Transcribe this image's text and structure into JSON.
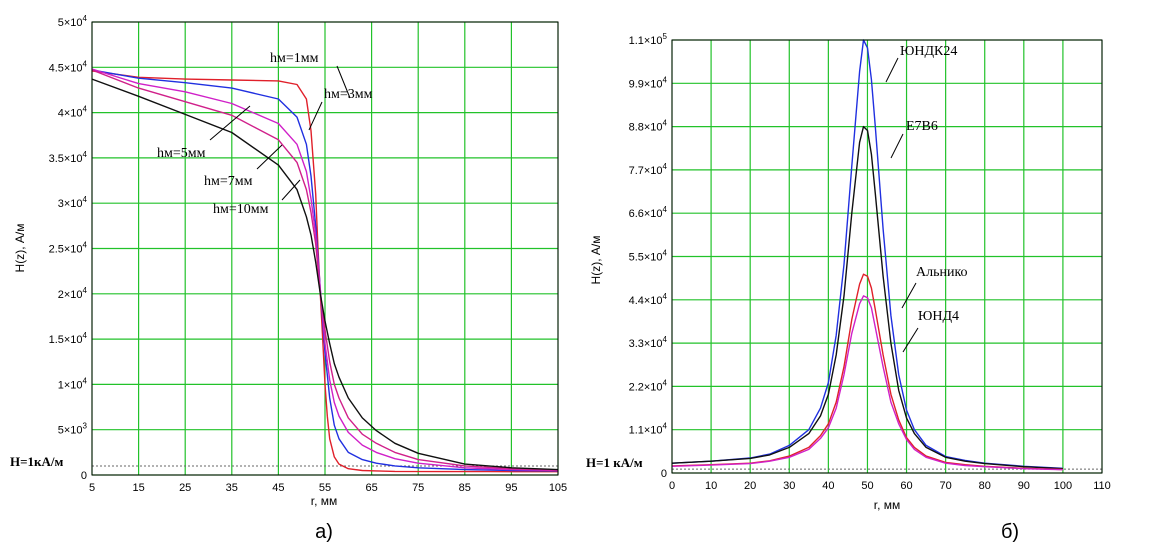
{
  "chart_data": [
    {
      "id": "a",
      "type": "line",
      "caption": "а)",
      "xlabel": "r, мм",
      "ylabel": "H(z), А/м",
      "xlim": [
        5,
        105
      ],
      "ylim": [
        0,
        50000
      ],
      "xticks": [
        "5",
        "15",
        "25",
        "35",
        "45",
        "55",
        "65",
        "75",
        "85",
        "95",
        "105"
      ],
      "yticks": [
        {
          "v": 0,
          "m": "0",
          "e": ""
        },
        {
          "v": 5000,
          "m": "5×10",
          "e": "3"
        },
        {
          "v": 10000,
          "m": "1×10",
          "e": "4"
        },
        {
          "v": 15000,
          "m": "1.5×10",
          "e": "4"
        },
        {
          "v": 20000,
          "m": "2×10",
          "e": "4"
        },
        {
          "v": 25000,
          "m": "2.5×10",
          "e": "4"
        },
        {
          "v": 30000,
          "m": "3×10",
          "e": "4"
        },
        {
          "v": 35000,
          "m": "3.5×10",
          "e": "4"
        },
        {
          "v": 40000,
          "m": "4×10",
          "e": "4"
        },
        {
          "v": 45000,
          "m": "4.5×10",
          "e": "4"
        },
        {
          "v": 50000,
          "m": "5×10",
          "e": "4"
        }
      ],
      "grid": true,
      "reference": {
        "label": "H=1кА/м",
        "value": 1000
      },
      "series": [
        {
          "name": "hм=1мм",
          "color": "#e0202a",
          "x": [
            5,
            15,
            25,
            35,
            45,
            49,
            51,
            52,
            53,
            53.5,
            54,
            54.5,
            55,
            55.5,
            56,
            57,
            58,
            60,
            63,
            66,
            70,
            80,
            90,
            105
          ],
          "y": [
            44600,
            43900,
            43700,
            43600,
            43500,
            43100,
            41500,
            38000,
            31000,
            25000,
            20000,
            15000,
            10000,
            6500,
            4000,
            2000,
            1200,
            700,
            500,
            450,
            400,
            380,
            370,
            360
          ]
        },
        {
          "name": "hм=3мм",
          "color": "#2030e0",
          "x": [
            5,
            15,
            25,
            35,
            45,
            49,
            51,
            52,
            53,
            54,
            55,
            56,
            57,
            58,
            60,
            63,
            66,
            70,
            75,
            85,
            95,
            105
          ],
          "y": [
            44700,
            43800,
            43300,
            42700,
            41500,
            39500,
            36500,
            33000,
            27500,
            20500,
            13500,
            8500,
            5500,
            4000,
            2500,
            1700,
            1300,
            1000,
            800,
            600,
            500,
            450
          ]
        },
        {
          "name": "hм=5мм",
          "color": "#d020c8",
          "x": [
            5,
            15,
            25,
            35,
            45,
            49,
            51,
            52,
            53,
            54,
            55,
            56,
            57,
            58,
            60,
            63,
            66,
            70,
            75,
            85,
            95,
            105
          ],
          "y": [
            44800,
            43200,
            42300,
            41000,
            38800,
            36500,
            33500,
            30500,
            26500,
            20500,
            14500,
            10500,
            8000,
            6500,
            4700,
            3300,
            2500,
            1800,
            1300,
            800,
            600,
            500
          ]
        },
        {
          "name": "hм=7мм",
          "color": "#d0208a",
          "x": [
            5,
            15,
            25,
            35,
            45,
            49,
            51,
            52,
            53,
            54,
            55,
            56,
            57,
            58,
            60,
            63,
            66,
            70,
            75,
            85,
            95,
            105
          ],
          "y": [
            44700,
            42700,
            41200,
            39700,
            37000,
            34500,
            31500,
            29000,
            25500,
            20000,
            16000,
            12500,
            10000,
            8500,
            6300,
            4500,
            3500,
            2500,
            1700,
            1000,
            700,
            550
          ]
        },
        {
          "name": "hм=10мм",
          "color": "#101010",
          "x": [
            5,
            15,
            25,
            35,
            45,
            49,
            51,
            52,
            53,
            54,
            55,
            56,
            57,
            58,
            60,
            63,
            66,
            70,
            75,
            85,
            95,
            105
          ],
          "y": [
            43700,
            41800,
            39800,
            37800,
            34200,
            31500,
            28500,
            26500,
            23500,
            20000,
            17000,
            14500,
            12300,
            10800,
            8500,
            6300,
            4900,
            3500,
            2400,
            1200,
            800,
            600
          ]
        }
      ],
      "annotations": [
        "hм=1мм",
        "hм=3мм",
        "hм=5мм",
        "hм=7мм",
        "hм=10мм"
      ]
    },
    {
      "id": "b",
      "type": "line",
      "caption": "б)",
      "xlabel": "r, мм",
      "ylabel": "H(z), А/м",
      "xlim": [
        0,
        110
      ],
      "ylim": [
        0,
        110000
      ],
      "xticks": [
        "0",
        "10",
        "20",
        "30",
        "40",
        "50",
        "60",
        "70",
        "80",
        "90",
        "100",
        "110"
      ],
      "yticks": [
        {
          "v": 0,
          "m": "0",
          "e": ""
        },
        {
          "v": 11000,
          "m": "1.1×10",
          "e": "4"
        },
        {
          "v": 22000,
          "m": "2.2×10",
          "e": "4"
        },
        {
          "v": 33000,
          "m": "3.3×10",
          "e": "4"
        },
        {
          "v": 44000,
          "m": "4.4×10",
          "e": "4"
        },
        {
          "v": 55000,
          "m": "5.5×10",
          "e": "4"
        },
        {
          "v": 66000,
          "m": "6.6×10",
          "e": "4"
        },
        {
          "v": 77000,
          "m": "7.7×10",
          "e": "4"
        },
        {
          "v": 88000,
          "m": "8.8×10",
          "e": "4"
        },
        {
          "v": 99000,
          "m": "9.9×10",
          "e": "4"
        },
        {
          "v": 110000,
          "m": "1.1×10",
          "e": "5"
        }
      ],
      "grid": true,
      "reference": {
        "label": "H=1 кА/м",
        "value": 1000
      },
      "series": [
        {
          "name": "ЮНДК24",
          "color": "#2030e0",
          "x": [
            0,
            10,
            20,
            25,
            30,
            35,
            38,
            40,
            42,
            44,
            46,
            48,
            49,
            50,
            51,
            52,
            54,
            56,
            58,
            60,
            62,
            65,
            70,
            75,
            80,
            90,
            100
          ],
          "y": [
            2500,
            3000,
            3800,
            4800,
            7000,
            11000,
            16500,
            23000,
            35000,
            53000,
            78000,
            102000,
            110000,
            108000,
            100000,
            88000,
            62000,
            40000,
            25000,
            16000,
            11000,
            7000,
            4200,
            3200,
            2500,
            1700,
            1200
          ]
        },
        {
          "name": "Е7В6",
          "color": "#101010",
          "x": [
            0,
            10,
            20,
            25,
            30,
            35,
            38,
            40,
            42,
            44,
            46,
            48,
            49,
            50,
            51,
            52,
            54,
            56,
            58,
            60,
            62,
            65,
            70,
            75,
            80,
            90,
            100
          ],
          "y": [
            2500,
            3000,
            3700,
            4600,
            6500,
            10000,
            14500,
            20000,
            30000,
            45000,
            66000,
            84000,
            88000,
            87000,
            81000,
            71000,
            50000,
            33000,
            21000,
            14000,
            10000,
            6500,
            4000,
            3000,
            2400,
            1600,
            1100
          ]
        },
        {
          "name": "Альнико",
          "color": "#e0202a",
          "x": [
            0,
            10,
            20,
            25,
            30,
            35,
            38,
            40,
            42,
            44,
            46,
            48,
            49,
            50,
            51,
            52,
            54,
            56,
            58,
            60,
            62,
            65,
            70,
            75,
            80,
            90,
            100
          ],
          "y": [
            1800,
            2100,
            2500,
            3100,
            4300,
            6500,
            9500,
            12500,
            18000,
            27000,
            39000,
            48000,
            50500,
            50000,
            47000,
            41500,
            30000,
            20000,
            13500,
            9000,
            6500,
            4300,
            2700,
            2100,
            1700,
            1200,
            900
          ]
        },
        {
          "name": "ЮНД4",
          "color": "#d020c8",
          "x": [
            0,
            10,
            20,
            25,
            30,
            35,
            38,
            40,
            42,
            44,
            46,
            48,
            49,
            50,
            51,
            52,
            54,
            56,
            58,
            60,
            62,
            65,
            70,
            75,
            80,
            90,
            100
          ],
          "y": [
            1700,
            2000,
            2400,
            3000,
            4000,
            6000,
            8800,
            11500,
            16500,
            25000,
            35500,
            43000,
            45000,
            44500,
            42000,
            37000,
            27000,
            18000,
            12500,
            8500,
            6000,
            4000,
            2500,
            1900,
            1600,
            1100,
            850
          ]
        }
      ],
      "annotations": [
        "ЮНДК24",
        "Е7В6",
        "Альнико",
        "ЮНД4"
      ]
    }
  ]
}
